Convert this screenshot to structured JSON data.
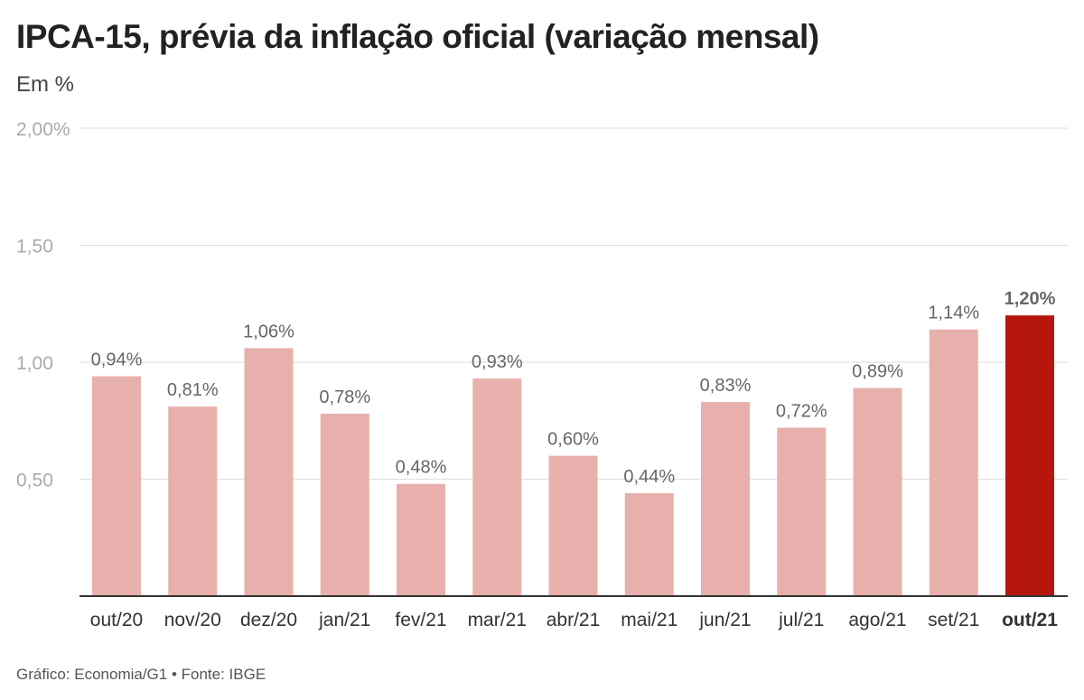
{
  "title": "IPCA-15, prévia da inflação oficial (variação mensal)",
  "subtitle": "Em %",
  "source": "Gráfico: Economia/G1 • Fonte: IBGE",
  "colors": {
    "bar": "#e8b0ac",
    "highlight_bar": "#b5170d",
    "grid": "#dddddd",
    "axis": "#333333",
    "tick_text": "#aaaaaa",
    "label_text": "#666666",
    "category_text": "#333333"
  },
  "chart_data": {
    "type": "bar",
    "categories": [
      "out/20",
      "nov/20",
      "dez/20",
      "jan/21",
      "fev/21",
      "mar/21",
      "abr/21",
      "mai/21",
      "jun/21",
      "jul/21",
      "ago/21",
      "set/21",
      "out/21"
    ],
    "values": [
      0.94,
      0.81,
      1.06,
      0.78,
      0.48,
      0.93,
      0.6,
      0.44,
      0.83,
      0.72,
      0.89,
      1.14,
      1.2
    ],
    "data_labels": [
      "0,94%",
      "0,81%",
      "1,06%",
      "0,78%",
      "0,48%",
      "0,93%",
      "0,60%",
      "0,44%",
      "0,83%",
      "0,72%",
      "0,89%",
      "1,14%",
      "1,20%"
    ],
    "highlight_index": 12,
    "yticks": [
      {
        "value": 0.5,
        "label": "0,50"
      },
      {
        "value": 1.0,
        "label": "1,00"
      },
      {
        "value": 1.5,
        "label": "1,50"
      },
      {
        "value": 2.0,
        "label": "2,00%"
      }
    ],
    "ylim": [
      0,
      2.0
    ],
    "grid": true,
    "xlabel": "",
    "ylabel": ""
  }
}
